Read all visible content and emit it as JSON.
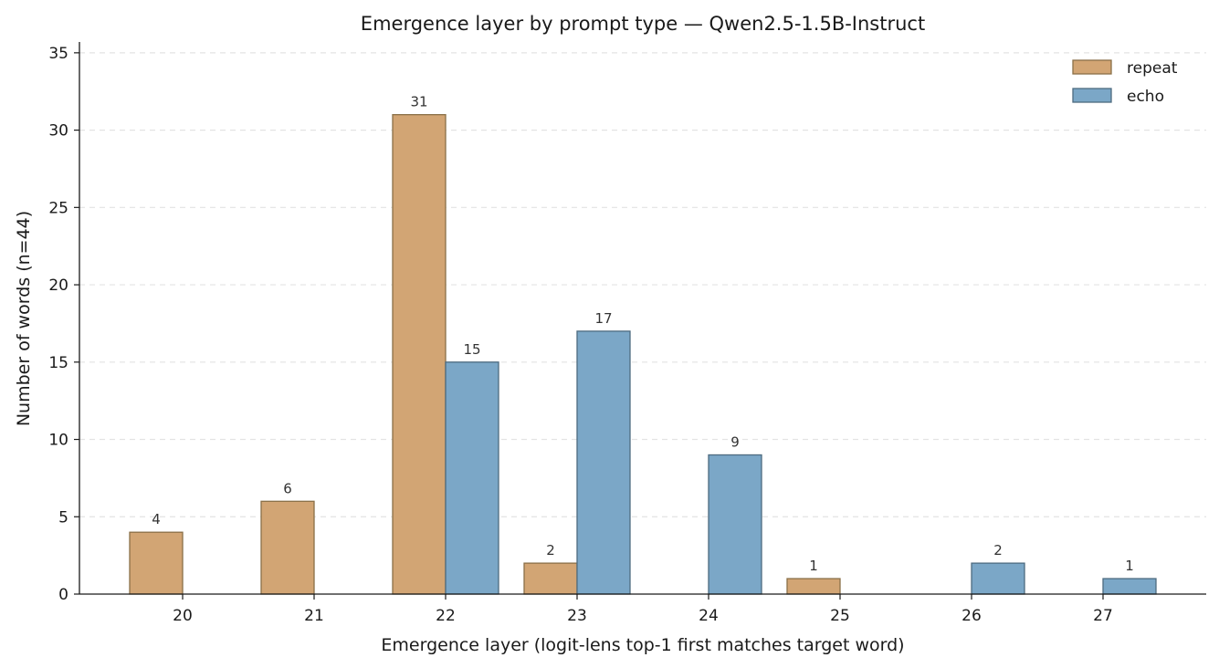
{
  "chart_data": {
    "type": "bar",
    "title": "Emergence layer by prompt type — Qwen2.5-1.5B-Instruct",
    "xlabel": "Emergence layer (logit-lens top-1 first matches target word)",
    "ylabel": "Number of words (n=44)",
    "categories": [
      "20",
      "21",
      "22",
      "23",
      "24",
      "25",
      "26",
      "27"
    ],
    "series": [
      {
        "name": "repeat",
        "color": "#d2a574",
        "edge": "#8a7048",
        "values": [
          4,
          6,
          31,
          2,
          0,
          1,
          0,
          0
        ]
      },
      {
        "name": "echo",
        "color": "#7ba7c7",
        "edge": "#4d6b80",
        "values": [
          0,
          0,
          15,
          17,
          9,
          0,
          2,
          1
        ]
      }
    ],
    "ylim": [
      0,
      35.7
    ],
    "yticks": [
      0,
      5,
      10,
      15,
      20,
      25,
      30,
      35
    ],
    "grid": "y, dashed",
    "legend_position": "top-right"
  }
}
